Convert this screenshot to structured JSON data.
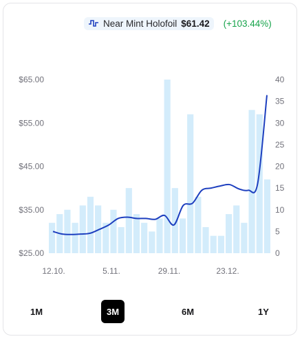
{
  "legend": {
    "series_name": "Near Mint Holofoil",
    "price": "$61.42",
    "change": "(+103.44%)",
    "line_color": "#1d3fbf",
    "change_color": "#16a34a"
  },
  "ranges": [
    "1M",
    "3M",
    "6M",
    "1Y"
  ],
  "active_range": "3M",
  "chart_data": {
    "type": "bar+line",
    "x_tick_labels": [
      "12.10.",
      "5.11.",
      "29.11.",
      "23.12."
    ],
    "y_left": {
      "ticks": [
        "$65.00",
        "$55.00",
        "$45.00",
        "$35.00",
        "$25.00"
      ],
      "ylim": [
        25,
        65
      ]
    },
    "y_right": {
      "ticks": [
        "40",
        "35",
        "30",
        "25",
        "20",
        "15",
        "10",
        "5",
        "0"
      ],
      "ylim": [
        0,
        40
      ]
    },
    "bar_color": "#d3ecfb",
    "line_color": "#1d3fbf",
    "volume_bars": [
      7,
      9,
      10,
      7,
      11,
      13,
      11,
      7,
      10,
      6,
      15,
      9,
      7,
      5,
      8,
      40,
      15,
      8,
      32,
      13,
      6,
      4,
      4,
      9,
      11,
      7,
      33,
      32,
      17
    ],
    "price_line": [
      30.0,
      29.4,
      29.3,
      29.4,
      29.6,
      30.5,
      31.5,
      33.0,
      33.3,
      33.0,
      33.0,
      32.8,
      33.7,
      31.5,
      36.0,
      36.5,
      39.5,
      40.0,
      40.5,
      40.8,
      39.8,
      39.5,
      41.0,
      61.42
    ]
  }
}
